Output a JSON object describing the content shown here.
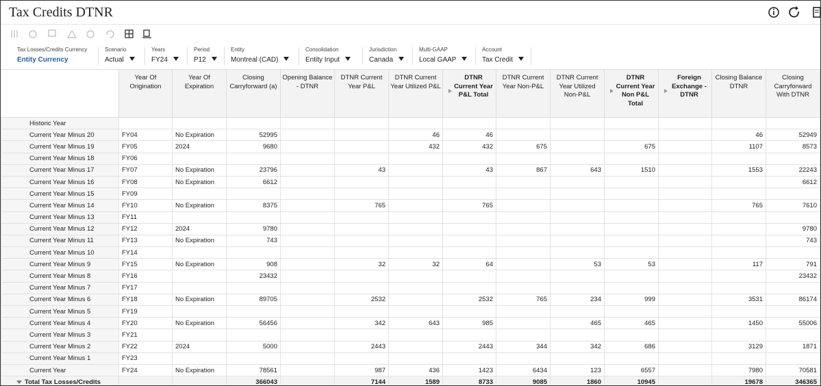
{
  "header": {
    "title": "Tax Credits DTNR"
  },
  "pov": [
    {
      "label": "Tax Losses/Credits Currency",
      "value": "Entity Currency"
    },
    {
      "label": "Scenario",
      "value": "Actual"
    },
    {
      "label": "Years",
      "value": "FY24"
    },
    {
      "label": "Period",
      "value": "P12"
    },
    {
      "label": "Entity",
      "value": "Montreal (CAD)"
    },
    {
      "label": "Consolidation",
      "value": "Entity Input"
    },
    {
      "label": "Jurisdiction",
      "value": "Canada"
    },
    {
      "label": "Multi-GAAP",
      "value": "Local GAAP"
    },
    {
      "label": "Account",
      "value": "Tax Credit"
    }
  ],
  "table": {
    "columns": [
      "Year Of Origination",
      "Year Of Expiration",
      "Closing Carryforward (a)",
      "Opening Balance - DTNR",
      "DTNR Current Year P&L",
      "DTNR Current Year Utilized P&L",
      "DTNR Current Year P&L Total",
      "DTNR Current Year Non-P&L",
      "DTNR Current Year Utilized Non-P&L",
      "DTNR Current Year Non P&L Total",
      "Foreign Exchange - DTNR",
      "Closing Balance DTNR",
      "Closing Carryforward With DTNR"
    ],
    "rows": [
      [
        "Historic Year",
        null,
        null,
        null,
        null,
        null,
        null,
        null,
        null,
        null,
        null,
        null,
        null,
        null
      ],
      [
        "Current Year Minus 20",
        "FY04",
        "No Expiration",
        52995,
        null,
        null,
        46,
        46,
        null,
        null,
        null,
        null,
        46,
        52949
      ],
      [
        "Current Year Minus 19",
        "FY05",
        "2024",
        9680,
        null,
        null,
        432,
        432,
        675,
        null,
        675,
        null,
        1107,
        8573
      ],
      [
        "Current Year Minus 18",
        "FY06",
        null,
        null,
        null,
        null,
        null,
        null,
        null,
        null,
        null,
        null,
        null,
        null
      ],
      [
        "Current Year Minus 17",
        "FY07",
        "No Expiration",
        23796,
        null,
        43,
        null,
        43,
        867,
        643,
        1510,
        null,
        1553,
        22243
      ],
      [
        "Current Year Minus 16",
        "FY08",
        "No Expiration",
        6612,
        null,
        null,
        null,
        null,
        null,
        null,
        null,
        null,
        null,
        6612
      ],
      [
        "Current Year Minus 15",
        "FY09",
        null,
        null,
        null,
        null,
        null,
        null,
        null,
        null,
        null,
        null,
        null,
        null
      ],
      [
        "Current Year Minus 14",
        "FY10",
        "No Expiration",
        8375,
        null,
        765,
        null,
        765,
        null,
        null,
        null,
        null,
        765,
        7610
      ],
      [
        "Current Year Minus 13",
        "FY11",
        null,
        null,
        null,
        null,
        null,
        null,
        null,
        null,
        null,
        null,
        null,
        null
      ],
      [
        "Current Year Minus 12",
        "FY12",
        "2024",
        9780,
        null,
        null,
        null,
        null,
        null,
        null,
        null,
        null,
        null,
        9780
      ],
      [
        "Current Year Minus 11",
        "FY13",
        "No Expiration",
        743,
        null,
        null,
        null,
        null,
        null,
        null,
        null,
        null,
        null,
        743
      ],
      [
        "Current Year Minus 10",
        "FY14",
        null,
        null,
        null,
        null,
        null,
        null,
        null,
        null,
        null,
        null,
        null,
        null
      ],
      [
        "Current Year Minus 9",
        "FY15",
        "No Expiration",
        908,
        null,
        32,
        32,
        64,
        null,
        53,
        53,
        null,
        117,
        791
      ],
      [
        "Current Year Minus 8",
        "FY16",
        null,
        23432,
        null,
        null,
        null,
        null,
        null,
        null,
        null,
        null,
        null,
        23432
      ],
      [
        "Current Year Minus 7",
        "FY17",
        null,
        null,
        null,
        null,
        null,
        null,
        null,
        null,
        null,
        null,
        null,
        null
      ],
      [
        "Current Year Minus 6",
        "FY18",
        "No Expiration",
        89705,
        null,
        2532,
        null,
        2532,
        765,
        234,
        999,
        null,
        3531,
        86174
      ],
      [
        "Current Year Minus 5",
        "FY19",
        null,
        null,
        null,
        null,
        null,
        null,
        null,
        null,
        null,
        null,
        null,
        null
      ],
      [
        "Current Year Minus 4",
        "FY20",
        "No Expiration",
        56456,
        null,
        342,
        643,
        985,
        null,
        465,
        465,
        null,
        1450,
        55006
      ],
      [
        "Current Year Minus 3",
        "FY21",
        null,
        null,
        null,
        null,
        null,
        null,
        null,
        null,
        null,
        null,
        null,
        null
      ],
      [
        "Current Year Minus 2",
        "FY22",
        "2024",
        5000,
        null,
        2443,
        null,
        2443,
        344,
        342,
        686,
        null,
        3129,
        1871
      ],
      [
        "Current Year Minus 1",
        "FY23",
        null,
        null,
        null,
        null,
        null,
        null,
        null,
        null,
        null,
        null,
        null,
        null
      ],
      [
        "Current Year",
        "FY24",
        "No Expiration",
        78561,
        null,
        987,
        436,
        1423,
        6434,
        123,
        6557,
        null,
        7980,
        70581
      ],
      [
        "Total Tax Losses/Credits",
        null,
        null,
        366043,
        null,
        7144,
        1589,
        8733,
        9085,
        1860,
        10945,
        null,
        19678,
        346365
      ]
    ]
  }
}
